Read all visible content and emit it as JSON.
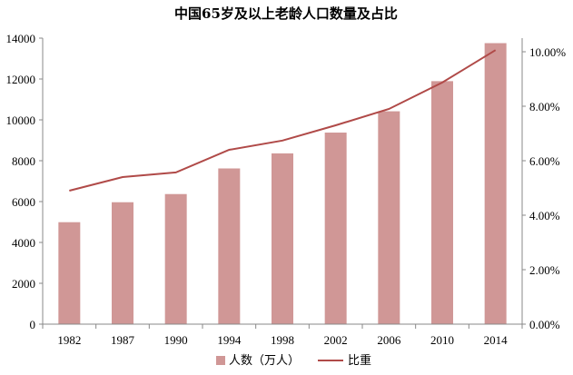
{
  "chart_data": {
    "type": "bar",
    "title": "中国65岁及以上老龄人口数量及占比",
    "categories": [
      "1982",
      "1987",
      "1990",
      "1994",
      "1998",
      "2002",
      "2006",
      "2010",
      "2014"
    ],
    "series": [
      {
        "name": "人数（万人）",
        "type": "bar",
        "axis": "left",
        "color": "#d09796",
        "values": [
          4991,
          5968,
          6368,
          7622,
          8359,
          9377,
          10419,
          11894,
          13755
        ]
      },
      {
        "name": "比重",
        "type": "line",
        "axis": "right",
        "color": "#b04a48",
        "values": [
          4.9,
          5.4,
          5.57,
          6.4,
          6.74,
          7.3,
          7.9,
          8.87,
          10.06
        ]
      }
    ],
    "y_left": {
      "min": 0,
      "max": 14000,
      "step": 2000,
      "ticks": [
        "0",
        "2000",
        "4000",
        "6000",
        "8000",
        "10000",
        "12000",
        "14000"
      ]
    },
    "y_right": {
      "min": 0,
      "max": 10.5,
      "step": 2,
      "ticks": [
        "0.00%",
        "2.00%",
        "4.00%",
        "6.00%",
        "8.00%",
        "10.00%"
      ]
    },
    "grid": false,
    "legend_position": "bottom"
  }
}
